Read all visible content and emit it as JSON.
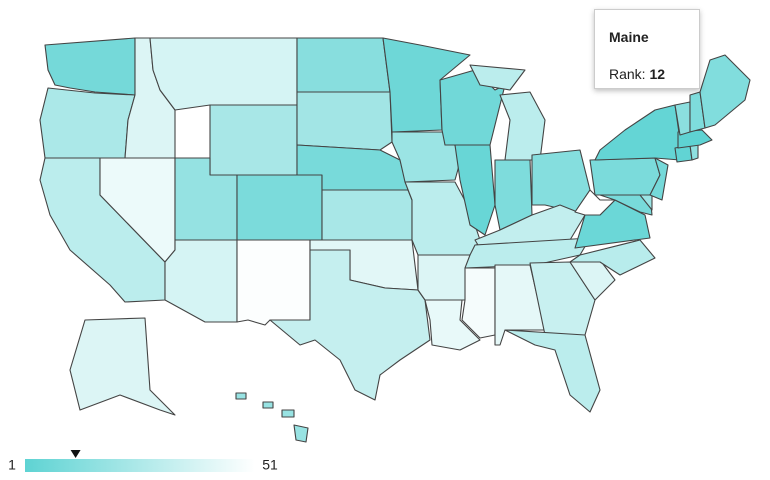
{
  "map": {
    "values": [
      8,
      25,
      30,
      45,
      40,
      38,
      24,
      18,
      38,
      10,
      50,
      14,
      22,
      9,
      24,
      42,
      33,
      6,
      20,
      30,
      40,
      44,
      7,
      4,
      30,
      11,
      13,
      32,
      30,
      48,
      43,
      34,
      30,
      40,
      29,
      5,
      51,
      9,
      20,
      10,
      8,
      3,
      2,
      16,
      1,
      15,
      11,
      12,
      40,
      19
    ],
    "color_scale": [
      "#5ed3d3",
      "#ffffff"
    ],
    "legend": {
      "min": 1,
      "max": 51
    }
  },
  "tooltip": {
    "title": "Maine",
    "label": "Rank:",
    "rank": 12
  }
}
